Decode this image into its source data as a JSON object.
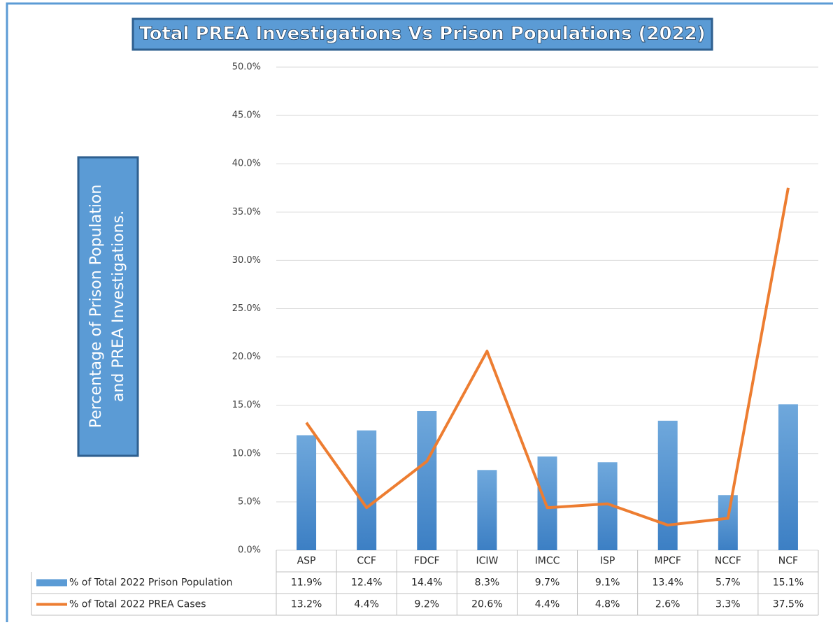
{
  "chart_data": {
    "type": "bar-line",
    "title": "Total PREA Investigations Vs Prison Populations (2022)",
    "ylabel": [
      "Percentage of Prison Population",
      "and PREA Investigations."
    ],
    "categories": [
      "ASP",
      "CCF",
      "FDCF",
      "ICIW",
      "IMCC",
      "ISP",
      "MPCF",
      "NCCF",
      "NCF"
    ],
    "series": [
      {
        "name": "% of Total 2022 Prison Population",
        "type": "bar",
        "color": "#5b9bd5",
        "values": [
          11.9,
          12.4,
          14.4,
          8.3,
          9.7,
          9.1,
          13.4,
          5.7,
          15.1
        ],
        "value_labels": [
          "11.9%",
          "12.4%",
          "14.4%",
          "8.3%",
          "9.7%",
          "9.1%",
          "13.4%",
          "5.7%",
          "15.1%"
        ]
      },
      {
        "name": "% of Total 2022 PREA Cases",
        "type": "line",
        "color": "#ed7d31",
        "values": [
          13.2,
          4.4,
          9.2,
          20.6,
          4.4,
          4.8,
          2.6,
          3.3,
          37.5
        ],
        "value_labels": [
          "13.2%",
          "4.4%",
          "9.2%",
          "20.6%",
          "4.4%",
          "4.8%",
          "2.6%",
          "3.3%",
          "37.5%"
        ]
      }
    ],
    "ylim": [
      0,
      50
    ],
    "yticks": [
      {
        "value": 0,
        "label": "0.0%"
      },
      {
        "value": 5,
        "label": "5.0%"
      },
      {
        "value": 10,
        "label": "10.0%"
      },
      {
        "value": 15,
        "label": "15.0%"
      },
      {
        "value": 20,
        "label": "20.0%"
      },
      {
        "value": 25,
        "label": "25.0%"
      },
      {
        "value": 30,
        "label": "30.0%"
      },
      {
        "value": 35,
        "label": "35.0%"
      },
      {
        "value": 40,
        "label": "40.0%"
      },
      {
        "value": 45,
        "label": "45.0%"
      },
      {
        "value": 50,
        "label": "50.0%"
      }
    ],
    "grid": true
  }
}
